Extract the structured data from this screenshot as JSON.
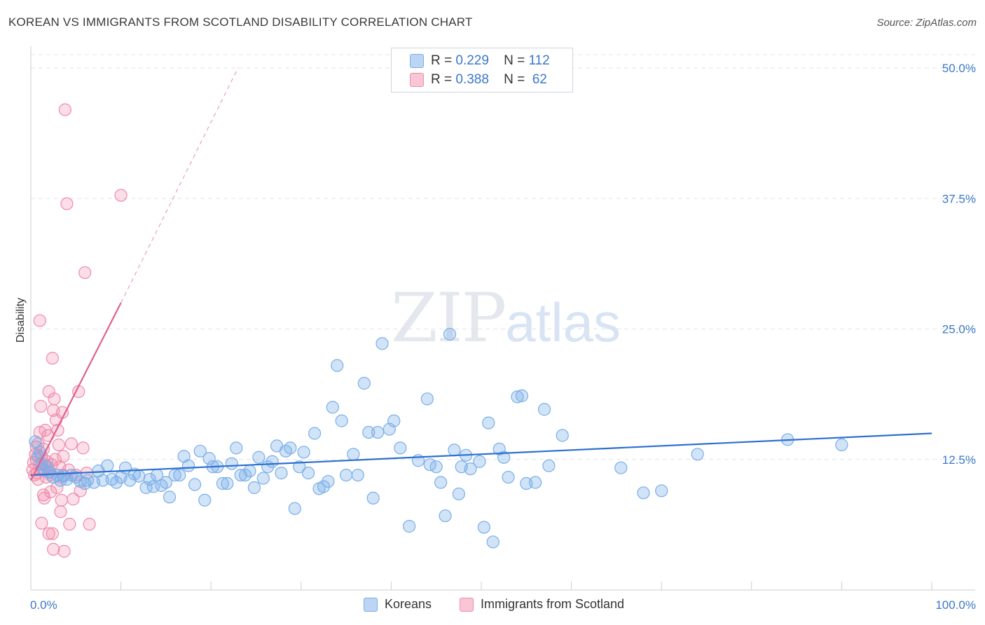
{
  "title": "KOREAN VS IMMIGRANTS FROM SCOTLAND DISABILITY CORRELATION CHART",
  "source": "Source: ZipAtlas.com",
  "watermark": {
    "zip": "ZIP",
    "atlas": "atlas"
  },
  "legend_top": [
    {
      "r_label": "R =",
      "r_value": "0.229",
      "n_label": "N =",
      "n_value": "112",
      "color": "#7aaee8"
    },
    {
      "r_label": "R =",
      "r_value": "0.388",
      "n_label": "N =",
      "n_value": " 62",
      "color": "#f08aaa"
    }
  ],
  "legend_bottom": [
    {
      "label": "Koreans",
      "color": "#7aaee8"
    },
    {
      "label": "Immigrants from Scotland",
      "color": "#f08aaa"
    }
  ],
  "chart_data": {
    "type": "scatter",
    "title": "KOREAN VS IMMIGRANTS FROM SCOTLAND DISABILITY CORRELATION CHART",
    "xlabel": "",
    "ylabel": "Disability",
    "xlim": [
      0,
      100
    ],
    "ylim": [
      0,
      50
    ],
    "x_tick_labels": [
      "0.0%",
      "100.0%"
    ],
    "y_ticks": [
      12.5,
      25.0,
      37.5,
      50.0
    ],
    "y_tick_labels": [
      "12.5%",
      "25.0%",
      "37.5%",
      "50.0%"
    ],
    "grid": true,
    "series": [
      {
        "name": "Koreans",
        "color": "#7aaee8",
        "line_color": "#2d6fd0",
        "trend": {
          "x": [
            0,
            100
          ],
          "y": [
            11.0,
            15.0
          ]
        },
        "points": [
          [
            0.5,
            14.2
          ],
          [
            0.8,
            12.8
          ],
          [
            1.0,
            13.2
          ],
          [
            1.2,
            12.0
          ],
          [
            1.5,
            11.5
          ],
          [
            1.8,
            11.8
          ],
          [
            2.0,
            11.3
          ],
          [
            2.5,
            10.8
          ],
          [
            3.0,
            11.0
          ],
          [
            3.3,
            10.5
          ],
          [
            3.6,
            10.9
          ],
          [
            4.0,
            10.6
          ],
          [
            4.5,
            11.0
          ],
          [
            5.0,
            10.8
          ],
          [
            5.5,
            10.4
          ],
          [
            6.0,
            10.2
          ],
          [
            6.3,
            10.5
          ],
          [
            7.0,
            10.3
          ],
          [
            7.5,
            11.4
          ],
          [
            8.0,
            10.5
          ],
          [
            8.5,
            11.9
          ],
          [
            9.0,
            10.6
          ],
          [
            9.5,
            10.3
          ],
          [
            10.0,
            10.8
          ],
          [
            10.5,
            11.7
          ],
          [
            11.0,
            10.5
          ],
          [
            11.5,
            11.1
          ],
          [
            12.0,
            10.9
          ],
          [
            12.8,
            9.8
          ],
          [
            13.2,
            10.6
          ],
          [
            13.6,
            9.9
          ],
          [
            14.0,
            11.0
          ],
          [
            14.5,
            10.0
          ],
          [
            15.0,
            10.3
          ],
          [
            15.4,
            8.9
          ],
          [
            16.0,
            11.0
          ],
          [
            16.5,
            11.0
          ],
          [
            17.0,
            12.8
          ],
          [
            17.5,
            11.9
          ],
          [
            18.2,
            10.1
          ],
          [
            18.8,
            13.3
          ],
          [
            19.3,
            8.6
          ],
          [
            19.8,
            12.6
          ],
          [
            20.2,
            11.8
          ],
          [
            20.7,
            11.8
          ],
          [
            21.3,
            10.2
          ],
          [
            21.8,
            10.2
          ],
          [
            22.3,
            12.1
          ],
          [
            22.8,
            13.6
          ],
          [
            23.3,
            11.0
          ],
          [
            23.8,
            11.0
          ],
          [
            24.3,
            11.4
          ],
          [
            24.8,
            9.8
          ],
          [
            25.3,
            12.7
          ],
          [
            25.8,
            10.7
          ],
          [
            26.3,
            11.8
          ],
          [
            26.8,
            12.3
          ],
          [
            27.3,
            13.8
          ],
          [
            27.8,
            11.2
          ],
          [
            28.3,
            13.3
          ],
          [
            28.8,
            13.6
          ],
          [
            29.3,
            7.8
          ],
          [
            29.8,
            11.8
          ],
          [
            30.3,
            13.2
          ],
          [
            30.8,
            11.2
          ],
          [
            31.5,
            15.0
          ],
          [
            32.0,
            9.7
          ],
          [
            32.5,
            9.9
          ],
          [
            33.0,
            10.4
          ],
          [
            33.5,
            17.5
          ],
          [
            34.0,
            21.5
          ],
          [
            34.5,
            16.2
          ],
          [
            35.0,
            11.0
          ],
          [
            35.8,
            13.0
          ],
          [
            36.3,
            11.0
          ],
          [
            37.0,
            19.8
          ],
          [
            37.5,
            15.1
          ],
          [
            38.0,
            8.8
          ],
          [
            38.5,
            15.1
          ],
          [
            39.0,
            23.6
          ],
          [
            39.8,
            15.4
          ],
          [
            40.3,
            16.2
          ],
          [
            41.0,
            13.6
          ],
          [
            42.0,
            6.1
          ],
          [
            43.0,
            12.4
          ],
          [
            44.0,
            18.3
          ],
          [
            44.3,
            12.0
          ],
          [
            45.0,
            11.8
          ],
          [
            45.5,
            10.3
          ],
          [
            46.0,
            7.1
          ],
          [
            46.5,
            24.5
          ],
          [
            47.0,
            13.4
          ],
          [
            47.5,
            9.2
          ],
          [
            47.8,
            11.8
          ],
          [
            48.3,
            12.9
          ],
          [
            48.8,
            11.6
          ],
          [
            49.8,
            12.3
          ],
          [
            50.3,
            6.0
          ],
          [
            50.8,
            16.0
          ],
          [
            51.3,
            4.6
          ],
          [
            52.0,
            13.5
          ],
          [
            52.5,
            12.7
          ],
          [
            53.0,
            10.8
          ],
          [
            54.0,
            18.5
          ],
          [
            54.5,
            18.6
          ],
          [
            55.0,
            10.2
          ],
          [
            56.0,
            10.3
          ],
          [
            57.0,
            17.3
          ],
          [
            57.5,
            11.9
          ],
          [
            59.0,
            14.8
          ],
          [
            65.5,
            11.7
          ],
          [
            68.0,
            9.3
          ],
          [
            70.0,
            9.5
          ],
          [
            84.0,
            14.4
          ],
          [
            90.0,
            13.9
          ],
          [
            74.0,
            13.0
          ]
        ]
      },
      {
        "name": "Immigrants from Scotland",
        "color": "#f08aaa",
        "line_color": "#e0608e",
        "trend": {
          "x": [
            0,
            10
          ],
          "y": [
            10.5,
            27.5
          ]
        },
        "trend_dashed": {
          "x": [
            10,
            23
          ],
          "y": [
            27.5,
            50.0
          ]
        },
        "points": [
          [
            0.2,
            11.5
          ],
          [
            0.3,
            12.2
          ],
          [
            0.4,
            11.0
          ],
          [
            0.5,
            13.0
          ],
          [
            0.6,
            12.5
          ],
          [
            0.7,
            11.2
          ],
          [
            0.8,
            14.0
          ],
          [
            0.9,
            12.0
          ],
          [
            1.0,
            15.1
          ],
          [
            1.1,
            17.6
          ],
          [
            1.2,
            12.8
          ],
          [
            1.3,
            11.6
          ],
          [
            1.4,
            13.5
          ],
          [
            1.5,
            12.1
          ],
          [
            1.6,
            11.9
          ],
          [
            1.7,
            10.8
          ],
          [
            1.8,
            12.3
          ],
          [
            1.9,
            14.8
          ],
          [
            2.0,
            19.0
          ],
          [
            2.1,
            11.3
          ],
          [
            2.2,
            9.4
          ],
          [
            2.3,
            12.0
          ],
          [
            2.4,
            22.2
          ],
          [
            2.5,
            17.2
          ],
          [
            2.6,
            18.3
          ],
          [
            2.7,
            12.5
          ],
          [
            2.8,
            16.3
          ],
          [
            2.9,
            9.8
          ],
          [
            3.0,
            15.3
          ],
          [
            3.1,
            13.9
          ],
          [
            3.2,
            11.8
          ],
          [
            3.3,
            7.5
          ],
          [
            3.4,
            8.6
          ],
          [
            3.5,
            17.0
          ],
          [
            3.6,
            11.0
          ],
          [
            3.7,
            3.7
          ],
          [
            3.8,
            46.0
          ],
          [
            4.0,
            37.0
          ],
          [
            4.2,
            11.5
          ],
          [
            4.3,
            6.3
          ],
          [
            4.5,
            14.0
          ],
          [
            4.7,
            8.7
          ],
          [
            5.0,
            11.0
          ],
          [
            5.3,
            19.0
          ],
          [
            5.5,
            9.5
          ],
          [
            5.8,
            13.6
          ],
          [
            6.0,
            30.4
          ],
          [
            6.2,
            11.2
          ],
          [
            6.5,
            6.3
          ],
          [
            10.0,
            37.8
          ],
          [
            1.0,
            25.8
          ],
          [
            1.5,
            8.8
          ],
          [
            2.0,
            5.4
          ],
          [
            2.5,
            3.9
          ],
          [
            1.2,
            6.4
          ],
          [
            0.8,
            10.6
          ],
          [
            1.6,
            15.3
          ],
          [
            2.2,
            11.0
          ],
          [
            0.6,
            13.7
          ],
          [
            1.4,
            9.1
          ],
          [
            2.4,
            5.4
          ],
          [
            3.6,
            12.8
          ]
        ]
      }
    ]
  }
}
